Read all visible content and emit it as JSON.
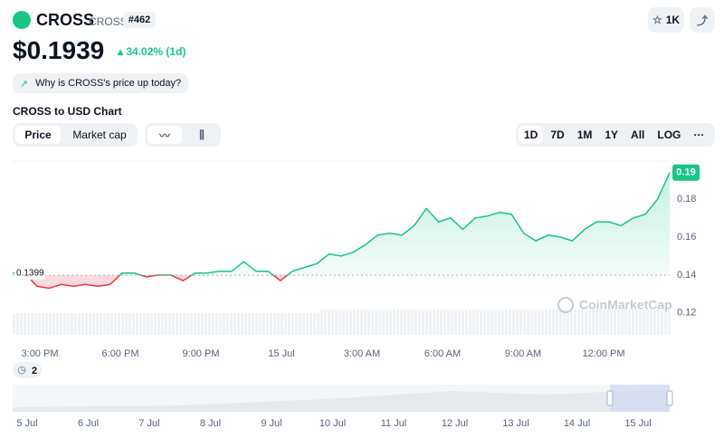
{
  "header": {
    "name": "CROSS",
    "symbol": "CROSS",
    "rank": "#462",
    "watchlist": "1K"
  },
  "price": {
    "value": "$0.1939",
    "change": "34.02% (1d)",
    "why": "Why is CROSS's price up today?"
  },
  "chart_title": "CROSS to USD Chart",
  "tabs": [
    "Price",
    "Market cap"
  ],
  "ranges": [
    "1D",
    "7D",
    "1M",
    "1Y",
    "All",
    "LOG",
    "···"
  ],
  "watermark": "CoinMarketCap",
  "badge": "2",
  "navigator_labels": [
    "5 Jul",
    "6 Jul",
    "7 Jul",
    "8 Jul",
    "9 Jul",
    "10 Jul",
    "11 Jul",
    "12 Jul",
    "13 Jul",
    "14 Jul",
    "15 Jul"
  ],
  "chart_data": {
    "type": "line",
    "x_labels": [
      "3:00 PM",
      "6:00 PM",
      "9:00 PM",
      "15 Jul",
      "3:00 AM",
      "6:00 AM",
      "9:00 AM",
      "12:00 PM"
    ],
    "series": [
      {
        "name": "CROSS",
        "color": "#16c784",
        "down_color": "#ea3943",
        "values": [
          0.141,
          0.141,
          0.134,
          0.133,
          0.135,
          0.134,
          0.135,
          0.134,
          0.135,
          0.141,
          0.141,
          0.139,
          0.14,
          0.14,
          0.137,
          0.141,
          0.141,
          0.142,
          0.142,
          0.147,
          0.142,
          0.142,
          0.137,
          0.142,
          0.144,
          0.146,
          0.151,
          0.15,
          0.152,
          0.156,
          0.161,
          0.162,
          0.161,
          0.166,
          0.175,
          0.168,
          0.17,
          0.164,
          0.17,
          0.171,
          0.173,
          0.172,
          0.162,
          0.158,
          0.161,
          0.16,
          0.158,
          0.164,
          0.168,
          0.168,
          0.166,
          0.17,
          0.172,
          0.18,
          0.1939
        ]
      }
    ],
    "reference": {
      "value": 0.1399,
      "label": "0.1399"
    },
    "current": {
      "value": 0.1939,
      "label": "0.19"
    },
    "ylim": [
      0.118,
      0.2
    ],
    "yticks": [
      0.12,
      0.14,
      0.16,
      0.18
    ]
  }
}
